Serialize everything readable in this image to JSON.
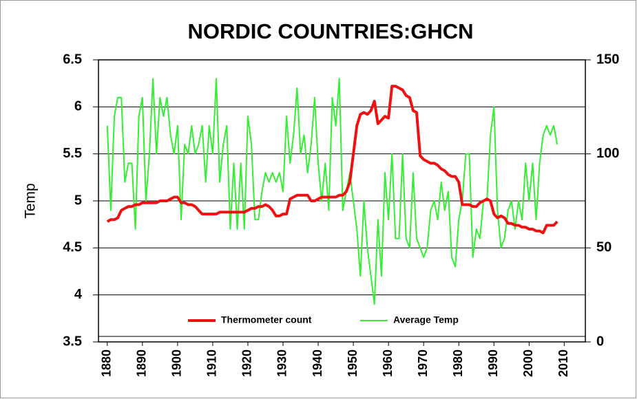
{
  "chart_data": {
    "type": "line",
    "title": "NORDIC COUNTRIES:GHCN",
    "y_label": "Temp",
    "x": [
      1880,
      1881,
      1882,
      1883,
      1884,
      1885,
      1886,
      1887,
      1888,
      1889,
      1890,
      1891,
      1892,
      1893,
      1894,
      1895,
      1896,
      1897,
      1898,
      1899,
      1900,
      1901,
      1902,
      1903,
      1904,
      1905,
      1906,
      1907,
      1908,
      1909,
      1910,
      1911,
      1912,
      1913,
      1914,
      1915,
      1916,
      1917,
      1918,
      1919,
      1920,
      1921,
      1922,
      1923,
      1924,
      1925,
      1926,
      1927,
      1928,
      1929,
      1930,
      1931,
      1932,
      1933,
      1934,
      1935,
      1936,
      1937,
      1938,
      1939,
      1940,
      1941,
      1942,
      1943,
      1944,
      1945,
      1946,
      1947,
      1948,
      1949,
      1950,
      1951,
      1952,
      1953,
      1954,
      1955,
      1956,
      1957,
      1958,
      1959,
      1960,
      1961,
      1962,
      1963,
      1964,
      1965,
      1966,
      1967,
      1968,
      1969,
      1970,
      1971,
      1972,
      1973,
      1974,
      1975,
      1976,
      1977,
      1978,
      1979,
      1980,
      1981,
      1982,
      1983,
      1984,
      1985,
      1986,
      1987,
      1988,
      1989,
      1990,
      1991,
      1992,
      1993,
      1994,
      1995,
      1996,
      1997,
      1998,
      1999,
      2000,
      2001,
      2002,
      2003,
      2004,
      2005,
      2006,
      2007,
      2008
    ],
    "series": [
      {
        "name": "Average Temp",
        "color": "#33ee33",
        "axis": "y",
        "values": [
          5.8,
          4.9,
          5.9,
          6.1,
          6.1,
          5.2,
          5.4,
          5.4,
          4.7,
          5.9,
          6.1,
          5.0,
          5.5,
          6.3,
          5.5,
          6.1,
          5.9,
          6.1,
          5.7,
          5.5,
          5.8,
          4.8,
          5.6,
          5.5,
          5.8,
          5.5,
          5.6,
          5.8,
          5.2,
          5.8,
          5.5,
          6.3,
          5.2,
          5.6,
          5.8,
          4.7,
          5.4,
          4.7,
          5.4,
          4.7,
          5.9,
          5.6,
          4.8,
          4.8,
          5.1,
          5.3,
          5.2,
          5.3,
          5.2,
          5.3,
          5.1,
          5.9,
          5.4,
          5.7,
          6.2,
          5.5,
          5.7,
          5.3,
          5.6,
          6.1,
          5.4,
          5.0,
          5.4,
          4.9,
          6.1,
          5.8,
          6.3,
          4.9,
          5.1,
          5.3,
          5.0,
          4.7,
          4.2,
          5.0,
          4.5,
          4.2,
          3.9,
          4.8,
          4.2,
          5.3,
          4.8,
          5.5,
          4.6,
          4.6,
          5.5,
          4.6,
          4.5,
          5.3,
          4.6,
          4.5,
          4.4,
          4.5,
          4.9,
          5.0,
          4.8,
          5.2,
          4.9,
          5.1,
          4.4,
          4.3,
          4.8,
          5.0,
          5.5,
          5.5,
          4.4,
          4.7,
          4.6,
          5.0,
          5.0,
          5.7,
          6.0,
          4.9,
          4.5,
          4.6,
          4.9,
          5.0,
          4.7,
          5.0,
          4.8,
          5.4,
          5.0,
          5.4,
          4.8,
          5.4,
          5.7,
          5.8,
          5.7,
          5.8,
          5.6
        ]
      },
      {
        "name": "Thermometer count",
        "color": "#ee1111",
        "axis": "y2",
        "values": [
          64,
          65,
          65,
          66,
          70,
          71,
          72,
          72,
          73,
          73,
          74,
          74,
          74,
          74,
          74,
          75,
          75,
          75,
          76,
          77,
          77,
          74,
          74,
          73,
          73,
          72,
          70,
          68,
          68,
          68,
          68,
          68,
          69,
          69,
          69,
          69,
          69,
          69,
          69,
          69,
          70,
          71,
          71,
          72,
          72,
          73,
          72,
          70,
          67,
          67,
          68,
          68,
          76,
          77,
          78,
          78,
          78,
          78,
          75,
          75,
          76,
          77,
          77,
          77,
          77,
          77,
          78,
          78,
          80,
          85,
          100,
          115,
          121,
          122,
          121,
          123,
          128,
          116,
          118,
          120,
          119,
          136,
          136,
          135,
          134,
          131,
          130,
          123,
          122,
          99,
          97,
          96,
          95,
          95,
          94,
          92,
          91,
          89,
          88,
          88,
          85,
          73,
          73,
          73,
          72,
          72,
          74,
          75,
          76,
          75,
          68,
          66,
          67,
          66,
          63,
          63,
          62,
          62,
          61,
          61,
          60,
          60,
          59,
          59,
          58,
          62,
          62,
          62,
          64
        ]
      }
    ],
    "legend_order": [
      1,
      0
    ],
    "xlim": [
      1877.5,
      2016
    ],
    "xticks": [
      1880,
      1890,
      1900,
      1910,
      1920,
      1930,
      1940,
      1950,
      1960,
      1970,
      1980,
      1990,
      2000,
      2010
    ],
    "ylim": [
      3.5,
      6.5
    ],
    "yticks": [
      3.5,
      4,
      4.5,
      5,
      5.5,
      6,
      6.5
    ],
    "y2lim": [
      0,
      150
    ],
    "y2ticks": [
      0,
      50,
      100,
      150
    ],
    "grid": true
  }
}
